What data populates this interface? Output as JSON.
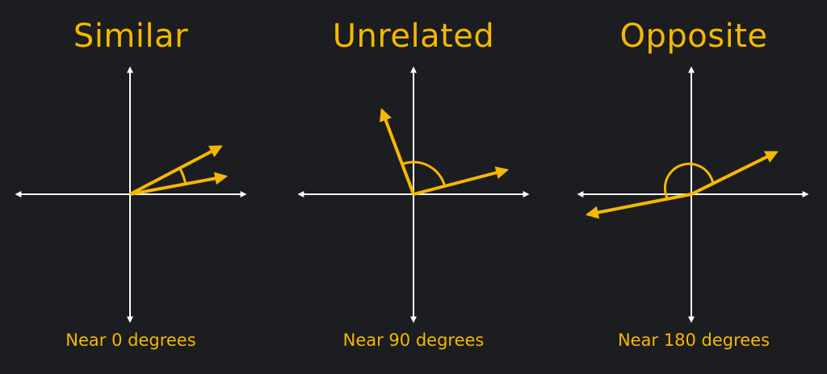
{
  "panels": [
    {
      "title": "Similar",
      "caption": "Near 0 degrees"
    },
    {
      "title": "Unrelated",
      "caption": "Near 90 degrees"
    },
    {
      "title": "Opposite",
      "caption": "Near 180 degrees"
    }
  ],
  "colors": {
    "background": "#1b1d20",
    "accent": "#f5b800",
    "axis": "#ffffff"
  }
}
